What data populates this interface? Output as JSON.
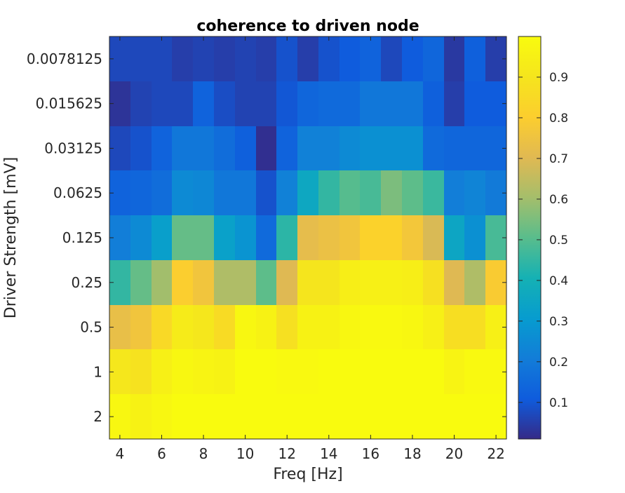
{
  "chart_data": {
    "type": "heatmap",
    "title": "coherence to driven node",
    "xlabel": "Freq [Hz]",
    "ylabel": "Driver Strength [mV]",
    "x": [
      4,
      5,
      6,
      7,
      8,
      9,
      10,
      11,
      12,
      13,
      14,
      15,
      16,
      17,
      18,
      19,
      20,
      21,
      22
    ],
    "xticks": [
      4,
      6,
      8,
      10,
      12,
      14,
      16,
      18,
      20,
      22
    ],
    "xlim": [
      3.5,
      22.5
    ],
    "y_categories": [
      "0.0078125",
      "0.015625",
      "0.03125",
      "0.0625",
      "0.125",
      "0.25",
      "0.5",
      "1",
      "2"
    ],
    "colorbar": {
      "ticks": [
        0.1,
        0.2,
        0.3,
        0.4,
        0.5,
        0.6,
        0.7,
        0.8,
        0.9
      ],
      "limits": [
        0.01,
        1.0
      ],
      "colormap": "parula"
    },
    "values": [
      [
        0.07,
        0.07,
        0.07,
        0.05,
        0.06,
        0.05,
        0.06,
        0.05,
        0.09,
        0.05,
        0.09,
        0.11,
        0.13,
        0.07,
        0.11,
        0.14,
        0.04,
        0.12,
        0.05
      ],
      [
        0.03,
        0.06,
        0.07,
        0.07,
        0.13,
        0.08,
        0.06,
        0.06,
        0.1,
        0.14,
        0.15,
        0.15,
        0.19,
        0.19,
        0.19,
        0.12,
        0.05,
        0.11,
        0.11
      ],
      [
        0.07,
        0.09,
        0.13,
        0.19,
        0.19,
        0.16,
        0.12,
        0.02,
        0.13,
        0.22,
        0.22,
        0.25,
        0.27,
        0.27,
        0.27,
        0.15,
        0.14,
        0.14,
        0.14
      ],
      [
        0.13,
        0.14,
        0.16,
        0.25,
        0.24,
        0.19,
        0.19,
        0.09,
        0.22,
        0.36,
        0.45,
        0.5,
        0.48,
        0.55,
        0.51,
        0.46,
        0.21,
        0.23,
        0.2
      ],
      [
        0.21,
        0.25,
        0.32,
        0.52,
        0.52,
        0.33,
        0.28,
        0.15,
        0.44,
        0.72,
        0.74,
        0.76,
        0.82,
        0.82,
        0.77,
        0.69,
        0.35,
        0.27,
        0.48
      ],
      [
        0.45,
        0.52,
        0.6,
        0.8,
        0.76,
        0.62,
        0.62,
        0.51,
        0.7,
        0.9,
        0.9,
        0.94,
        0.95,
        0.95,
        0.94,
        0.88,
        0.7,
        0.62,
        0.79
      ],
      [
        0.73,
        0.76,
        0.85,
        0.93,
        0.91,
        0.86,
        0.98,
        0.96,
        0.88,
        0.96,
        0.96,
        0.98,
        0.99,
        0.99,
        0.98,
        0.95,
        0.87,
        0.87,
        0.95
      ],
      [
        0.91,
        0.89,
        0.95,
        0.98,
        0.97,
        0.96,
        1.0,
        1.0,
        0.99,
        0.99,
        1.0,
        1.0,
        1.0,
        1.0,
        1.0,
        1.0,
        0.97,
        0.99,
        0.99
      ],
      [
        0.98,
        0.96,
        0.98,
        1.0,
        1.0,
        1.0,
        1.0,
        1.0,
        1.0,
        1.0,
        1.0,
        1.0,
        1.0,
        1.0,
        1.0,
        1.0,
        1.0,
        1.0,
        1.0
      ]
    ]
  }
}
